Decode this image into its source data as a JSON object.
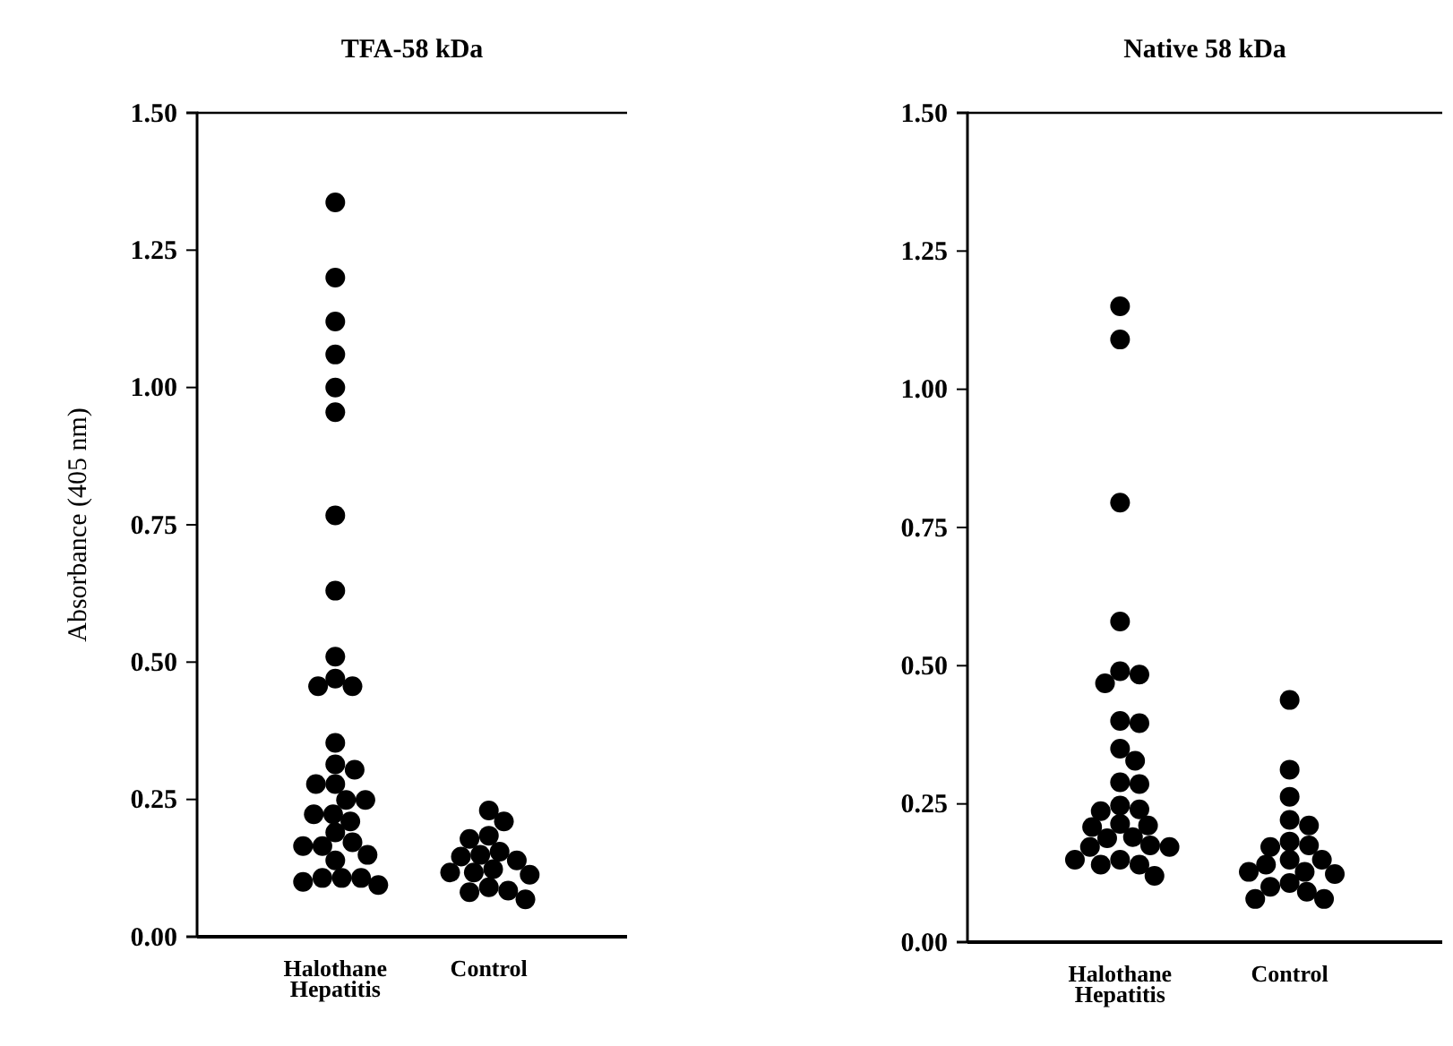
{
  "chart_data": [
    {
      "type": "scatter",
      "title": "TFA-58 kDa",
      "ylabel": "Absorbance (405 nm)",
      "marker": "circle",
      "categories": [
        "Halothane Hepatitis",
        "Control"
      ],
      "ylim": [
        0,
        1.5
      ],
      "yticks": [
        {
          "value": 0,
          "label": "0.00"
        },
        {
          "value": 0.25,
          "label": "0.25"
        },
        {
          "value": 0.5,
          "label": "0.50"
        },
        {
          "value": 0.75,
          "label": "0.75"
        },
        {
          "value": 1,
          "label": "1.00"
        },
        {
          "value": 1.25,
          "label": "1.25"
        },
        {
          "value": 1.5,
          "label": "1.50"
        }
      ],
      "series": [
        {
          "color": "#000000",
          "x": [
            "Halothane Hepatitis",
            "Halothane Hepatitis",
            "Halothane Hepatitis",
            "Halothane Hepatitis",
            "Halothane Hepatitis",
            "Halothane Hepatitis",
            "Halothane Hepatitis",
            "Halothane Hepatitis",
            "Halothane Hepatitis",
            "Halothane Hepatitis",
            "Halothane Hepatitis",
            "Halothane Hepatitis",
            "Halothane Hepatitis",
            "Halothane Hepatitis",
            "Halothane Hepatitis",
            "Halothane Hepatitis",
            "Halothane Hepatitis",
            "Halothane Hepatitis",
            "Halothane Hepatitis",
            "Halothane Hepatitis",
            "Halothane Hepatitis",
            "Halothane Hepatitis",
            "Halothane Hepatitis",
            "Halothane Hepatitis",
            "Halothane Hepatitis",
            "Halothane Hepatitis",
            "Halothane Hepatitis",
            "Halothane Hepatitis",
            "Halothane Hepatitis",
            "Halothane Hepatitis",
            "Halothane Hepatitis",
            "Halothane Hepatitis",
            "Halothane Hepatitis"
          ],
          "values": [
            1.337,
            1.2,
            1.12,
            1.06,
            1.0,
            0.955,
            0.767,
            0.63,
            0.51,
            0.47,
            0.456,
            0.456,
            0.353,
            0.314,
            0.304,
            0.278,
            0.278,
            0.249,
            0.249,
            0.223,
            0.223,
            0.21,
            0.19,
            0.172,
            0.165,
            0.165,
            0.149,
            0.139,
            0.107,
            0.107,
            0.107,
            0.1,
            0.094
          ]
        },
        {
          "color": "#000000",
          "x": [
            "Control",
            "Control",
            "Control",
            "Control",
            "Control",
            "Control",
            "Control",
            "Control",
            "Control",
            "Control",
            "Control",
            "Control",
            "Control",
            "Control",
            "Control",
            "Control"
          ],
          "values": [
            0.23,
            0.21,
            0.178,
            0.184,
            0.146,
            0.149,
            0.155,
            0.139,
            0.117,
            0.117,
            0.113,
            0.123,
            0.09,
            0.068,
            0.081,
            0.084
          ]
        }
      ]
    },
    {
      "type": "scatter",
      "title": "Native 58 kDa",
      "marker": "circle",
      "categories": [
        "Halothane Hepatitis",
        "Control"
      ],
      "ylim": [
        0,
        1.5
      ],
      "yticks": [
        {
          "value": 0,
          "label": "0.00"
        },
        {
          "value": 0.25,
          "label": "0.25"
        },
        {
          "value": 0.5,
          "label": "0.50"
        },
        {
          "value": 0.75,
          "label": "0.75"
        },
        {
          "value": 1,
          "label": "1.00"
        },
        {
          "value": 1.25,
          "label": "1.25"
        },
        {
          "value": 1.5,
          "label": "1.50"
        }
      ],
      "series": [
        {
          "color": "#000000",
          "x": [
            "Halothane Hepatitis",
            "Halothane Hepatitis",
            "Halothane Hepatitis",
            "Halothane Hepatitis",
            "Halothane Hepatitis",
            "Halothane Hepatitis",
            "Halothane Hepatitis",
            "Halothane Hepatitis",
            "Halothane Hepatitis",
            "Halothane Hepatitis",
            "Halothane Hepatitis",
            "Halothane Hepatitis",
            "Halothane Hepatitis",
            "Halothane Hepatitis",
            "Halothane Hepatitis",
            "Halothane Hepatitis",
            "Halothane Hepatitis",
            "Halothane Hepatitis",
            "Halothane Hepatitis",
            "Halothane Hepatitis",
            "Halothane Hepatitis",
            "Halothane Hepatitis",
            "Halothane Hepatitis",
            "Halothane Hepatitis",
            "Halothane Hepatitis",
            "Halothane Hepatitis",
            "Halothane Hepatitis",
            "Halothane Hepatitis",
            "Halothane Hepatitis"
          ],
          "values": [
            1.15,
            1.09,
            0.795,
            0.58,
            0.484,
            0.468,
            0.49,
            0.4,
            0.396,
            0.35,
            0.328,
            0.286,
            0.289,
            0.237,
            0.247,
            0.24,
            0.208,
            0.214,
            0.211,
            0.175,
            0.19,
            0.188,
            0.172,
            0.172,
            0.149,
            0.149,
            0.14,
            0.14,
            0.12
          ]
        },
        {
          "color": "#000000",
          "x": [
            "Control",
            "Control",
            "Control",
            "Control",
            "Control",
            "Control",
            "Control",
            "Control",
            "Control",
            "Control",
            "Control",
            "Control",
            "Control",
            "Control",
            "Control",
            "Control",
            "Control",
            "Control",
            "Control"
          ],
          "values": [
            0.438,
            0.312,
            0.263,
            0.211,
            0.221,
            0.172,
            0.175,
            0.182,
            0.149,
            0.149,
            0.14,
            0.127,
            0.127,
            0.123,
            0.107,
            0.1,
            0.078,
            0.078,
            0.091
          ]
        }
      ]
    }
  ]
}
